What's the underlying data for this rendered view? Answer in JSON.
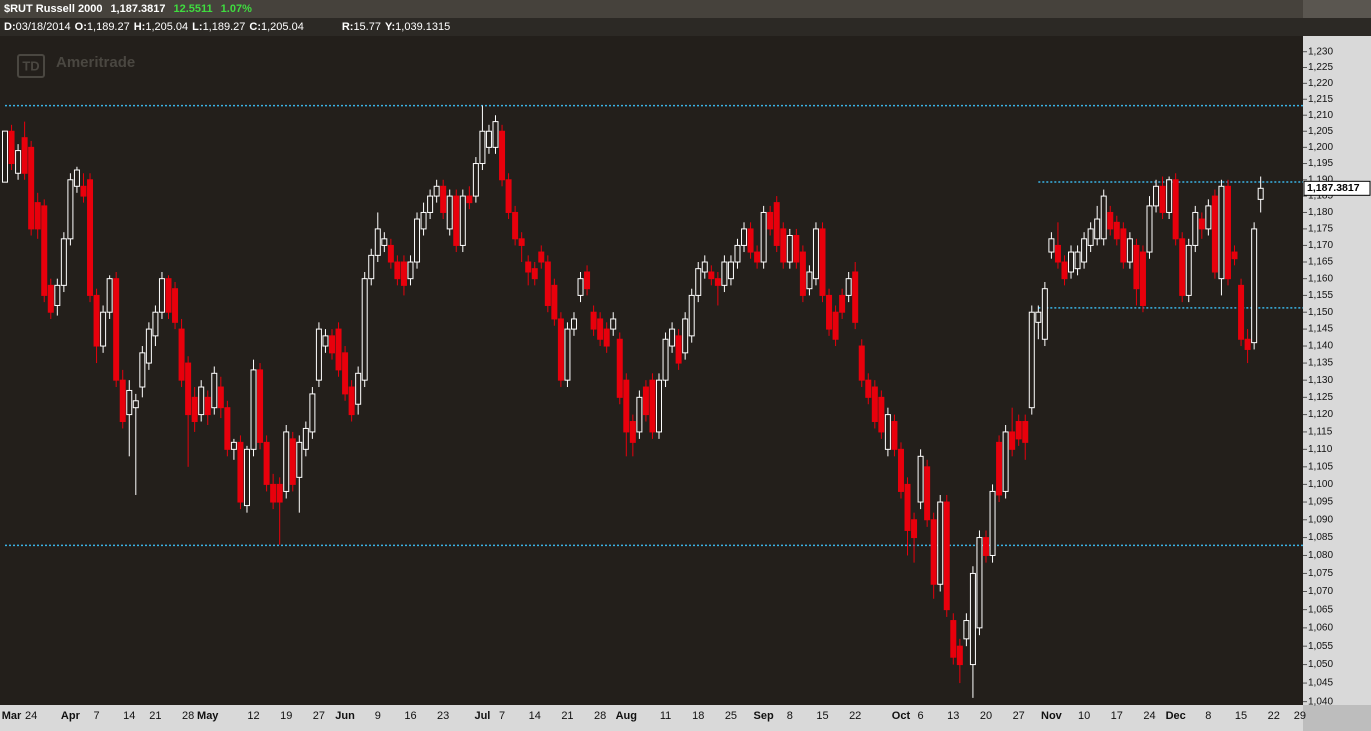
{
  "header": {
    "symbol": "$RUT Russell 2000",
    "last": "1,187.3817",
    "change": "12.5511",
    "change_pct": "1.07%",
    "fields": [
      {
        "key": "D:",
        "value": "03/18/2014"
      },
      {
        "key": "O:",
        "value": "1,189.27"
      },
      {
        "key": "H:",
        "value": "1,205.04"
      },
      {
        "key": "L:",
        "value": "1,189.27"
      },
      {
        "key": "C:",
        "value": "1,205.04"
      }
    ],
    "cursor": [
      {
        "key": "R:",
        "value": "15.77"
      },
      {
        "key": "Y:",
        "value": "1,039.1315"
      }
    ]
  },
  "watermark": {
    "logo": "TD",
    "text": "Ameritrade"
  },
  "chart_data": {
    "type": "candlestick",
    "log_scale": true,
    "up_color": "#ffffff",
    "down_color": "#e8000c",
    "line_color": "#3ab4e6",
    "ylim": [
      1039.1,
      1235
    ],
    "yticks": [
      {
        "value": 1040,
        "label": "1,040"
      },
      {
        "value": 1045,
        "label": "1,045"
      },
      {
        "value": 1050,
        "label": "1,050"
      },
      {
        "value": 1055,
        "label": "1,055"
      },
      {
        "value": 1060,
        "label": "1,060"
      },
      {
        "value": 1065,
        "label": "1,065"
      },
      {
        "value": 1070,
        "label": "1,070"
      },
      {
        "value": 1075,
        "label": "1,075"
      },
      {
        "value": 1080,
        "label": "1,080"
      },
      {
        "value": 1085,
        "label": "1,085"
      },
      {
        "value": 1090,
        "label": "1,090"
      },
      {
        "value": 1095,
        "label": "1,095"
      },
      {
        "value": 1100,
        "label": "1,100"
      },
      {
        "value": 1105,
        "label": "1,105"
      },
      {
        "value": 1110,
        "label": "1,110"
      },
      {
        "value": 1115,
        "label": "1,115"
      },
      {
        "value": 1120,
        "label": "1,120"
      },
      {
        "value": 1125,
        "label": "1,125"
      },
      {
        "value": 1130,
        "label": "1,130"
      },
      {
        "value": 1135,
        "label": "1,135"
      },
      {
        "value": 1140,
        "label": "1,140"
      },
      {
        "value": 1145,
        "label": "1,145"
      },
      {
        "value": 1150,
        "label": "1,150"
      },
      {
        "value": 1155,
        "label": "1,155"
      },
      {
        "value": 1160,
        "label": "1,160"
      },
      {
        "value": 1165,
        "label": "1,165"
      },
      {
        "value": 1170,
        "label": "1,170"
      },
      {
        "value": 1175,
        "label": "1,175"
      },
      {
        "value": 1180,
        "label": "1,180"
      },
      {
        "value": 1185,
        "label": "1,185"
      },
      {
        "value": 1190,
        "label": "1,190"
      },
      {
        "value": 1195,
        "label": "1,195"
      },
      {
        "value": 1200,
        "label": "1,200"
      },
      {
        "value": 1205,
        "label": "1,205"
      },
      {
        "value": 1210,
        "label": "1,210"
      },
      {
        "value": 1215,
        "label": "1,215"
      },
      {
        "value": 1220,
        "label": "1,220"
      },
      {
        "value": 1225,
        "label": "1,225"
      },
      {
        "value": 1230,
        "label": "1,230"
      }
    ],
    "hlines": [
      1213,
      1189.3,
      1151.3,
      1082.8
    ],
    "categories": [
      null,
      "Mar",
      null,
      null,
      "24",
      null,
      null,
      null,
      null,
      null,
      "Apr",
      null,
      null,
      null,
      "7",
      null,
      null,
      null,
      null,
      "14",
      null,
      null,
      null,
      "21",
      null,
      null,
      null,
      null,
      "28",
      null,
      null,
      "May",
      null,
      null,
      null,
      null,
      null,
      null,
      "12",
      null,
      null,
      null,
      null,
      "19",
      null,
      null,
      null,
      null,
      "27",
      null,
      null,
      null,
      "Jun",
      null,
      null,
      null,
      null,
      "9",
      null,
      null,
      null,
      null,
      "16",
      null,
      null,
      null,
      null,
      "23",
      null,
      null,
      null,
      null,
      null,
      "Jul",
      null,
      null,
      "7",
      null,
      null,
      null,
      null,
      "14",
      null,
      null,
      null,
      null,
      "21",
      null,
      null,
      null,
      null,
      "28",
      null,
      null,
      null,
      "Aug",
      null,
      null,
      null,
      null,
      null,
      "11",
      null,
      null,
      null,
      null,
      "18",
      null,
      null,
      null,
      null,
      "25",
      null,
      null,
      null,
      null,
      "Sep",
      null,
      null,
      null,
      "8",
      null,
      null,
      null,
      null,
      "15",
      null,
      null,
      null,
      null,
      "22",
      null,
      null,
      null,
      null,
      null,
      null,
      "Oct",
      null,
      null,
      "6",
      null,
      null,
      null,
      null,
      "13",
      null,
      null,
      null,
      null,
      "20",
      null,
      null,
      null,
      null,
      "27",
      null,
      null,
      null,
      null,
      "Nov",
      null,
      null,
      null,
      null,
      "10",
      null,
      null,
      null,
      null,
      "17",
      null,
      null,
      null,
      null,
      "24",
      null,
      null,
      null,
      "Dec",
      null,
      null,
      null,
      null,
      "8",
      null,
      null,
      null,
      null,
      "15",
      null,
      null,
      null
    ],
    "future_labels": [
      "22",
      "29"
    ],
    "open": [
      1189.27,
      1205,
      1192,
      1203,
      1200,
      1183,
      1182,
      1158,
      1152,
      1158,
      1172,
      1188,
      1188,
      1190,
      1155,
      1140,
      1150,
      1160,
      1130,
      1120,
      1122,
      1128,
      1135,
      1143,
      1150,
      1160,
      1157,
      1145,
      1135,
      1125,
      1120,
      1125,
      1122,
      1128,
      1122,
      1110,
      1112,
      1094,
      1110,
      1133,
      1112,
      1100,
      1100,
      1098,
      1113,
      1102,
      1110,
      1115,
      1130,
      1140,
      1143,
      1145,
      1138,
      1128,
      1123,
      1130,
      1160,
      1167,
      1170,
      1170,
      1165,
      1165,
      1160,
      1165,
      1175,
      1180,
      1185,
      1188,
      1175,
      1185,
      1170,
      1185,
      1185,
      1195,
      1200,
      1200,
      1205,
      1190,
      1180,
      1172,
      1165,
      1163,
      1168,
      1165,
      1158,
      1148,
      1130,
      1145,
      1155,
      1162,
      1150,
      1148,
      1145,
      1145,
      1142,
      1130,
      1118,
      1115,
      1128,
      1130,
      1115,
      1130,
      1140,
      1143,
      1138,
      1143,
      1155,
      1162,
      1162,
      1160,
      1158,
      1160,
      1165,
      1170,
      1175,
      1168,
      1165,
      1180,
      1183,
      1175,
      1165,
      1173,
      1168,
      1157,
      1160,
      1175,
      1155,
      1150,
      1155,
      1155,
      1162,
      1140,
      1130,
      1128,
      1125,
      1110,
      1118,
      1110,
      1100,
      1090,
      1095,
      1105,
      1090,
      1072,
      1095,
      1062,
      1055,
      1057,
      1050,
      1060,
      1085,
      1080,
      1112,
      1098,
      1115,
      1118,
      1118,
      1122,
      1147,
      1142,
      1168,
      1170,
      1165,
      1162,
      1163,
      1165,
      1170,
      1172,
      1172,
      1180,
      1177,
      1175,
      1165,
      1170,
      1168,
      1168,
      1182,
      1188,
      1180,
      1190,
      1172,
      1155,
      1170,
      1178,
      1175,
      1185,
      1160,
      1188,
      1168,
      1158,
      1142,
      1141,
      1184
    ],
    "high": [
      1205.04,
      1207,
      1201,
      1208,
      1202,
      1186,
      1184,
      1160,
      1160,
      1174,
      1192,
      1194,
      1192,
      1192,
      1157,
      1152,
      1161,
      1162,
      1133,
      1130,
      1126,
      1140,
      1147,
      1152,
      1162,
      1161,
      1159,
      1148,
      1137,
      1128,
      1130,
      1127,
      1134,
      1131,
      1124,
      1113,
      1114,
      1111,
      1136,
      1135,
      1114,
      1103,
      1102,
      1117,
      1115,
      1114,
      1118,
      1128,
      1147,
      1145,
      1145,
      1147,
      1140,
      1130,
      1134,
      1162,
      1169,
      1180,
      1174,
      1172,
      1167,
      1167,
      1167,
      1180,
      1183,
      1187,
      1190,
      1190,
      1187,
      1187,
      1187,
      1188,
      1197,
      1213,
      1207,
      1210,
      1207,
      1192,
      1182,
      1174,
      1167,
      1165,
      1170,
      1167,
      1160,
      1150,
      1147,
      1150,
      1162,
      1164,
      1152,
      1150,
      1147,
      1150,
      1144,
      1132,
      1120,
      1127,
      1130,
      1132,
      1132,
      1144,
      1147,
      1145,
      1150,
      1157,
      1165,
      1167,
      1164,
      1162,
      1167,
      1167,
      1172,
      1177,
      1177,
      1170,
      1182,
      1182,
      1185,
      1177,
      1175,
      1175,
      1170,
      1164,
      1177,
      1177,
      1157,
      1152,
      1157,
      1162,
      1165,
      1142,
      1132,
      1130,
      1127,
      1122,
      1120,
      1112,
      1102,
      1092,
      1110,
      1107,
      1092,
      1097,
      1097,
      1064,
      1057,
      1064,
      1077,
      1087,
      1087,
      1100,
      1114,
      1117,
      1122,
      1120,
      1120,
      1152,
      1152,
      1159,
      1174,
      1177,
      1167,
      1170,
      1170,
      1174,
      1177,
      1182,
      1187,
      1182,
      1179,
      1177,
      1174,
      1172,
      1170,
      1185,
      1190,
      1191,
      1191,
      1192,
      1174,
      1172,
      1182,
      1180,
      1184,
      1187,
      1190,
      1190,
      1170,
      1160,
      1145,
      1177,
      1191
    ],
    "low": [
      1189.27,
      1193,
      1190,
      1190,
      1173,
      1172,
      1153,
      1148,
      1149,
      1156,
      1170,
      1186,
      1183,
      1153,
      1135,
      1138,
      1148,
      1128,
      1116,
      1108,
      1097,
      1125,
      1133,
      1140,
      1148,
      1148,
      1145,
      1128,
      1105,
      1115,
      1118,
      1117,
      1120,
      1119,
      1108,
      1107,
      1093,
      1092,
      1108,
      1110,
      1098,
      1093,
      1083,
      1096,
      1098,
      1092,
      1108,
      1113,
      1128,
      1138,
      1136,
      1131,
      1124,
      1118,
      1120,
      1128,
      1158,
      1165,
      1168,
      1163,
      1158,
      1155,
      1158,
      1163,
      1173,
      1178,
      1183,
      1178,
      1173,
      1168,
      1168,
      1181,
      1183,
      1193,
      1198,
      1198,
      1188,
      1178,
      1170,
      1165,
      1158,
      1158,
      1163,
      1150,
      1146,
      1128,
      1128,
      1143,
      1153,
      1155,
      1143,
      1140,
      1138,
      1143,
      1123,
      1108,
      1108,
      1113,
      1118,
      1113,
      1113,
      1128,
      1138,
      1133,
      1136,
      1141,
      1153,
      1160,
      1158,
      1152,
      1156,
      1158,
      1163,
      1168,
      1166,
      1163,
      1163,
      1173,
      1168,
      1163,
      1163,
      1163,
      1153,
      1155,
      1158,
      1153,
      1143,
      1140,
      1148,
      1153,
      1145,
      1128,
      1123,
      1116,
      1113,
      1108,
      1108,
      1096,
      1080,
      1078,
      1093,
      1088,
      1068,
      1070,
      1063,
      1050,
      1045,
      1055,
      1041,
      1058,
      1078,
      1078,
      1095,
      1096,
      1108,
      1111,
      1107,
      1120,
      1142,
      1140,
      1166,
      1163,
      1158,
      1160,
      1161,
      1163,
      1168,
      1170,
      1170,
      1173,
      1170,
      1163,
      1163,
      1152,
      1150,
      1166,
      1180,
      1178,
      1178,
      1170,
      1153,
      1153,
      1168,
      1172,
      1173,
      1160,
      1155,
      1158,
      1164,
      1140,
      1135,
      1139,
      1180
    ],
    "close": [
      1205.04,
      1195,
      1199,
      1192,
      1175,
      1175,
      1155,
      1150,
      1158,
      1172,
      1190,
      1193,
      1185,
      1155,
      1140,
      1150,
      1160,
      1130,
      1118,
      1127,
      1124,
      1138,
      1145,
      1150,
      1160,
      1150,
      1147,
      1130,
      1120,
      1118,
      1128,
      1120,
      1132,
      1122,
      1110,
      1112,
      1095,
      1110,
      1133,
      1112,
      1100,
      1095,
      1095,
      1115,
      1100,
      1112,
      1116,
      1126,
      1145,
      1143,
      1138,
      1133,
      1126,
      1120,
      1132,
      1160,
      1167,
      1175,
      1172,
      1165,
      1160,
      1158,
      1165,
      1178,
      1180,
      1185,
      1188,
      1180,
      1185,
      1170,
      1185,
      1183,
      1195,
      1205,
      1205,
      1208,
      1190,
      1180,
      1172,
      1170,
      1162,
      1160,
      1165,
      1152,
      1148,
      1130,
      1145,
      1148,
      1160,
      1157,
      1145,
      1142,
      1140,
      1148,
      1125,
      1115,
      1112,
      1125,
      1120,
      1115,
      1130,
      1142,
      1145,
      1135,
      1148,
      1155,
      1163,
      1165,
      1160,
      1158,
      1165,
      1165,
      1170,
      1175,
      1168,
      1165,
      1180,
      1175,
      1170,
      1165,
      1173,
      1165,
      1155,
      1162,
      1175,
      1155,
      1145,
      1142,
      1150,
      1160,
      1147,
      1130,
      1125,
      1118,
      1115,
      1120,
      1110,
      1098,
      1087,
      1085,
      1108,
      1090,
      1072,
      1095,
      1065,
      1052,
      1050,
      1062,
      1075,
      1085,
      1080,
      1098,
      1097,
      1115,
      1110,
      1113,
      1112,
      1150,
      1150,
      1157,
      1172,
      1165,
      1160,
      1168,
      1168,
      1172,
      1175,
      1178,
      1185,
      1175,
      1172,
      1165,
      1172,
      1157,
      1152,
      1182,
      1188,
      1180,
      1190,
      1172,
      1155,
      1170,
      1180,
      1175,
      1182,
      1162,
      1188,
      1160,
      1166,
      1142,
      1139,
      1175,
      1187.3817
    ]
  }
}
